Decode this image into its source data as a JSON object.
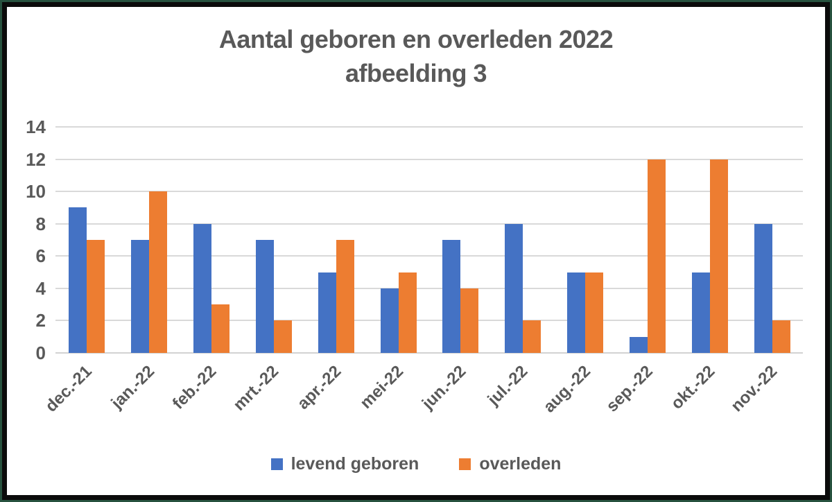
{
  "title": {
    "line1": "Aantal geboren en overleden 2022",
    "line2": "afbeelding 3"
  },
  "chart_data": {
    "type": "bar",
    "title": "Aantal geboren en overleden 2022",
    "subtitle": "afbeelding 3",
    "categories": [
      "dec.-21",
      "jan.-22",
      "feb.-22",
      "mrt.-22",
      "apr.-22",
      "mei-22",
      "jun.-22",
      "jul.-22",
      "aug.-22",
      "sep.-22",
      "okt.-22",
      "nov.-22"
    ],
    "series": [
      {
        "name": "levend geboren",
        "color": "#4472C4",
        "values": [
          9,
          7,
          8,
          7,
          5,
          4,
          7,
          8,
          5,
          1,
          5,
          8
        ]
      },
      {
        "name": "overleden",
        "color": "#ED7D31",
        "values": [
          7,
          10,
          3,
          2,
          7,
          5,
          4,
          2,
          5,
          12,
          12,
          2
        ]
      }
    ],
    "xlabel": "",
    "ylabel": "",
    "ylim": [
      0,
      14
    ],
    "yticks": [
      0,
      2,
      4,
      6,
      8,
      10,
      12,
      14
    ],
    "grid": "horizontal",
    "legend_position": "bottom",
    "colors": {
      "text": "#595959",
      "gridline": "#d9d9d9",
      "background": "#ffffff",
      "border_outer_green": "#27523f",
      "border_inner_black": "#0b0b0b"
    }
  }
}
